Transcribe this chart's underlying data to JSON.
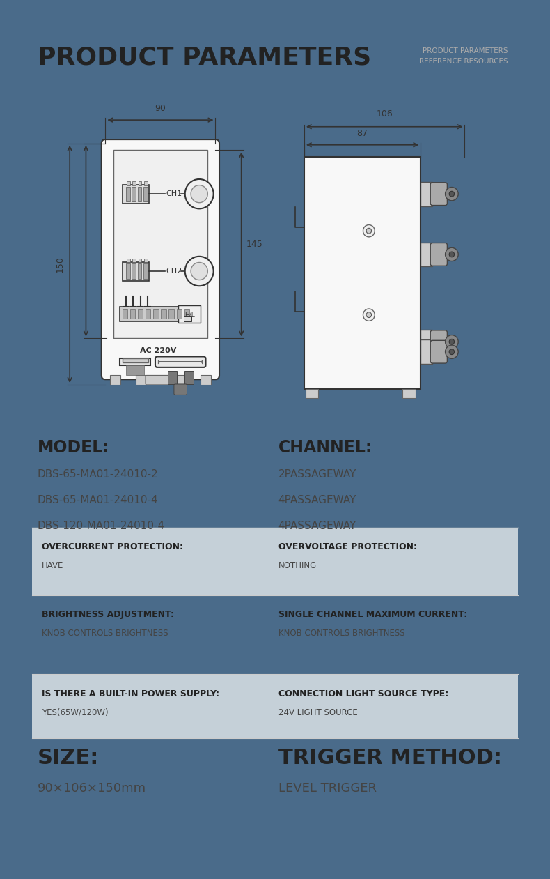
{
  "bg_color": "#4a6b8a",
  "white": "#ffffff",
  "light_gray": "#c5d0d8",
  "dark_text": "#222222",
  "medium_text": "#444444",
  "light_text": "#aaaaaa",
  "line_color": "#4a6b8a",
  "draw_color": "#333333",
  "title": "PRODUCT PARAMETERS",
  "subtitle_line1": "PRODUCT PARAMETERS",
  "subtitle_line2": "REFERENCE RESOURCES",
  "model_label": "MODEL:",
  "model_values": [
    "DBS-65-MA01-24010-2",
    "DBS-65-MA01-24010-4",
    "DBS-120-MA01-24010-4"
  ],
  "channel_label": "CHANNEL:",
  "channel_values": [
    "2PASSAGEWAY",
    "4PASSAGEWAY",
    "4PASSAGEWAY"
  ],
  "rows": [
    {
      "col1_label": "OVERCURRENT PROTECTION:",
      "col1_value": "HAVE",
      "col2_label": "OVERVOLTAGE PROTECTION:",
      "col2_value": "NOTHING",
      "shaded": true
    },
    {
      "col1_label": "BRIGHTNESS ADJUSTMENT:",
      "col1_value": "KNOB CONTROLS BRIGHTNESS",
      "col2_label": "SINGLE CHANNEL MAXIMUM CURRENT:",
      "col2_value": "KNOB CONTROLS BRIGHTNESS",
      "shaded": false
    },
    {
      "col1_label": "IS THERE A BUILT-IN POWER SUPPLY:",
      "col1_value": "YES(65W/120W)",
      "col2_label": "CONNECTION LIGHT SOURCE TYPE:",
      "col2_value": "24V LIGHT SOURCE",
      "shaded": true
    }
  ],
  "size_label": "SIZE:",
  "size_value": "90×106×150mm",
  "trigger_label": "TRIGGER METHOD:",
  "trigger_value": "LEVEL TRIGGER",
  "dim_front_width": "90",
  "dim_front_height": "145",
  "dim_front_outer": "150",
  "dim_side_top": "106",
  "dim_side_inner": "87"
}
